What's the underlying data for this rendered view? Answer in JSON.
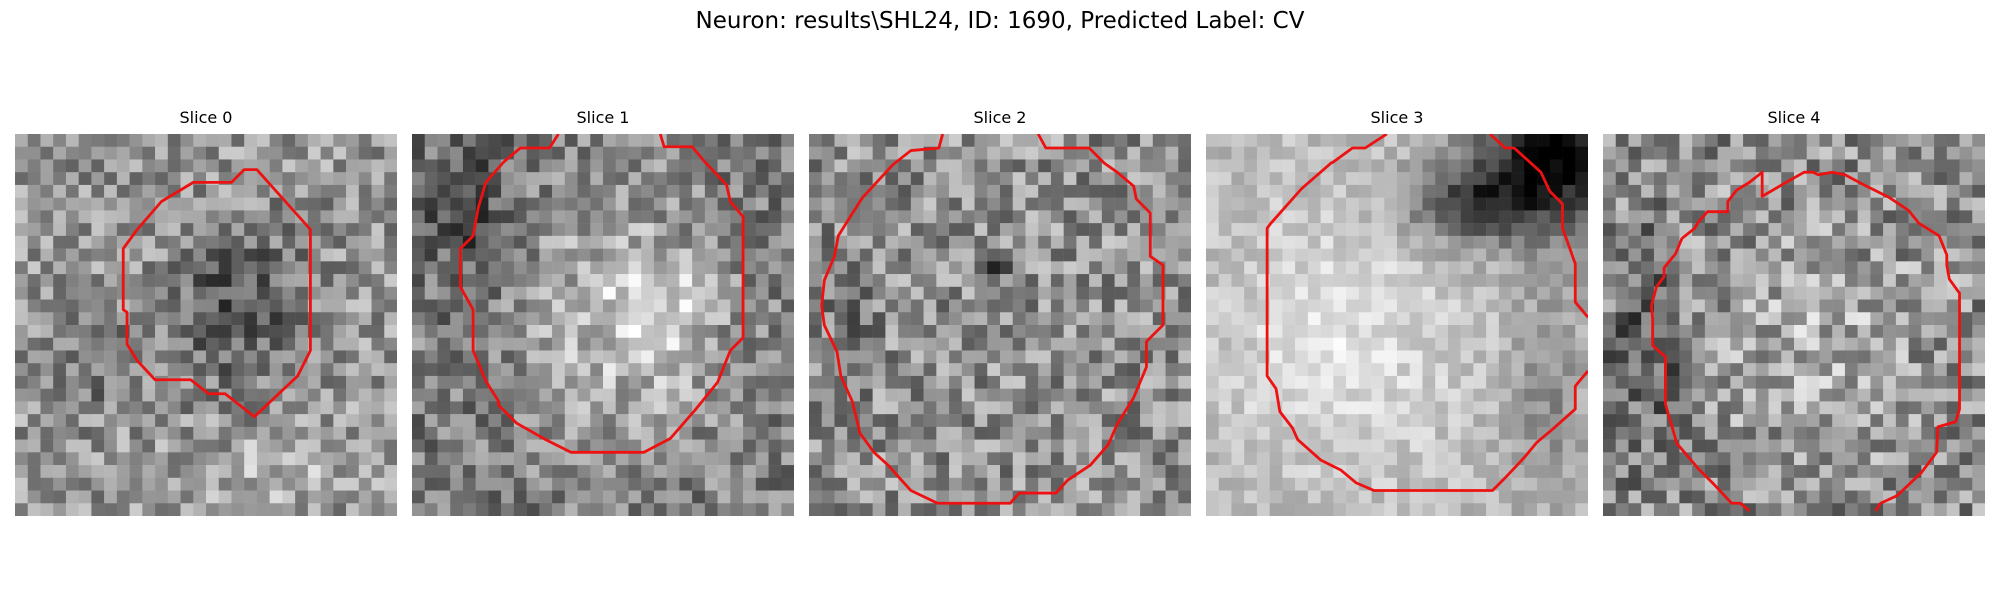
{
  "figure": {
    "title": "Neuron: results\\SHL24, ID: 1690, Predicted Label: CV"
  },
  "panels": [
    {
      "title": "Slice 0",
      "pattern": "dark-center-blob"
    },
    {
      "title": "Slice 1",
      "pattern": "bright-right-center"
    },
    {
      "title": "Slice 2",
      "pattern": "uniform-mid-gray"
    },
    {
      "title": "Slice 3",
      "pattern": "bright-left-dark-top-right"
    },
    {
      "title": "Slice 4",
      "pattern": "textured-mid-gray"
    }
  ],
  "colors": {
    "contour": "#ee1111",
    "background": "#ffffff"
  }
}
